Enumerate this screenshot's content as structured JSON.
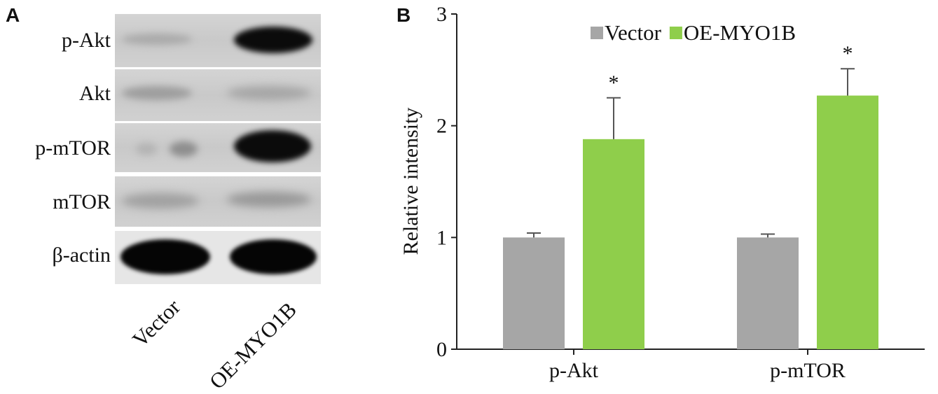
{
  "panel_a": {
    "letter": "A",
    "rows": [
      "p-Akt",
      "Akt",
      "p-mTOR",
      "mTOR",
      "β-actin"
    ],
    "lanes": [
      "Vector",
      "OE-MYO1B"
    ]
  },
  "panel_b": {
    "letter": "B"
  },
  "chart_data": {
    "type": "bar",
    "categories": [
      "p-Akt",
      "p-mTOR"
    ],
    "series": [
      {
        "name": "Vector",
        "color": "#a6a6a6",
        "values": [
          1.0,
          1.0
        ],
        "errors": [
          0.04,
          0.03
        ]
      },
      {
        "name": "OE-MYO1B",
        "color": "#8fce4b",
        "values": [
          1.88,
          2.27
        ],
        "errors": [
          0.37,
          0.24
        ]
      }
    ],
    "annotations": [
      "*",
      "*"
    ],
    "xlabel": "",
    "ylabel": "Relative intensity",
    "ylim": [
      0,
      3
    ],
    "yticks": [
      "0",
      "1",
      "2",
      "3"
    ],
    "grid": false,
    "legend_position": "top-center"
  }
}
